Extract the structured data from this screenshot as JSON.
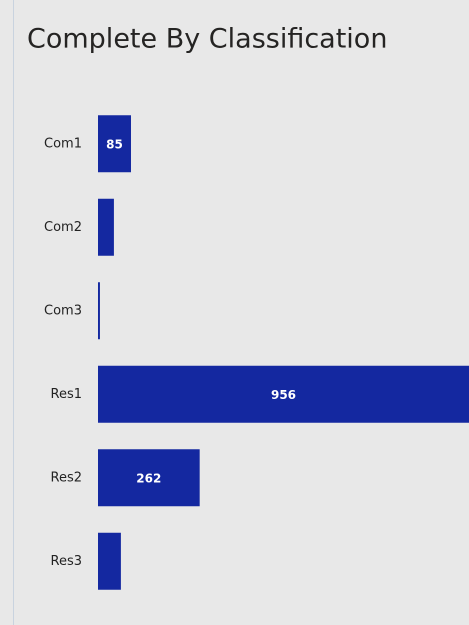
{
  "chart_data": {
    "type": "bar",
    "orientation": "horizontal",
    "title": "Complete By Classification",
    "categories": [
      "Com1",
      "Com2",
      "Com3",
      "Res1",
      "Res2",
      "Res3"
    ],
    "values": [
      85,
      41,
      5,
      956,
      262,
      59
    ],
    "color": "#1428a0",
    "xlim": [
      0,
      956
    ]
  }
}
